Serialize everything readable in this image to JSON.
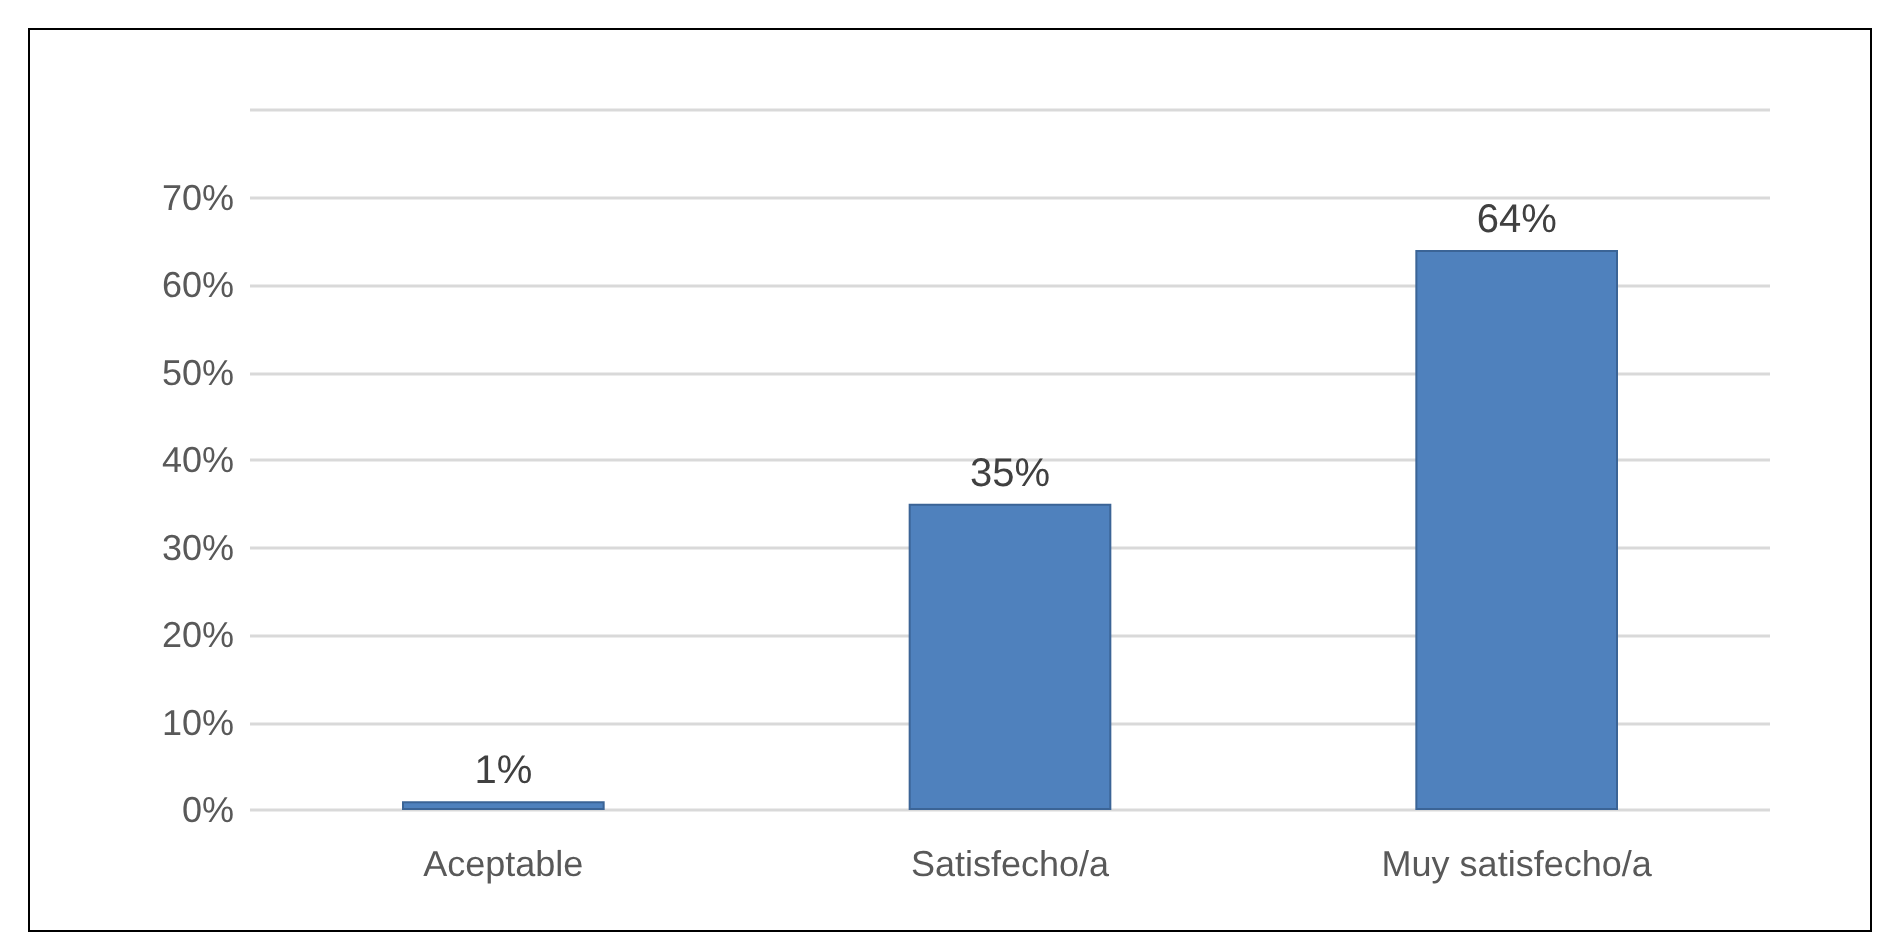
{
  "chart_data": {
    "type": "bar",
    "categories": [
      "Aceptable",
      "Satisfecho/a",
      "Muy satisfecho/a"
    ],
    "values": [
      1,
      35,
      64
    ],
    "color": "#4f81bd",
    "value_labels": [
      "1%",
      "35%",
      "64%"
    ],
    "ylim": [
      0,
      80
    ],
    "yticks": [
      {
        "value": 0,
        "label": "0%"
      },
      {
        "value": 10,
        "label": "10%"
      },
      {
        "value": 20,
        "label": "20%"
      },
      {
        "value": 30,
        "label": "30%"
      },
      {
        "value": 40,
        "label": "40%"
      },
      {
        "value": 50,
        "label": "50%"
      },
      {
        "value": 60,
        "label": "60%"
      },
      {
        "value": 70,
        "label": "70%"
      },
      {
        "value": 80,
        "label": null
      }
    ],
    "grid": "y"
  }
}
